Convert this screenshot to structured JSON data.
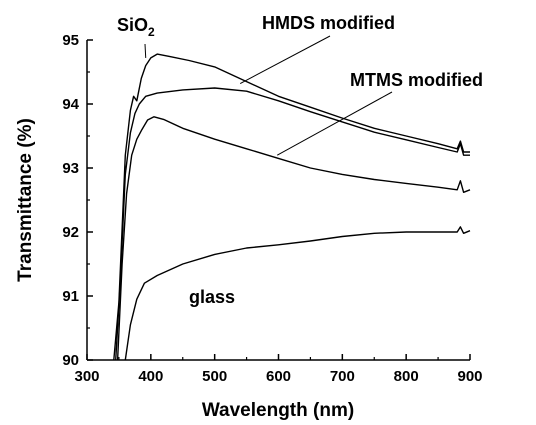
{
  "chart_data": {
    "type": "line",
    "title": "",
    "xlabel": "Wavelength (nm)",
    "ylabel": "Transmittance (%)",
    "xlim": [
      300,
      900
    ],
    "ylim": [
      90,
      95
    ],
    "xticks": [
      "300",
      "400",
      "500",
      "600",
      "700",
      "800",
      "900"
    ],
    "yticks": [
      "90",
      "91",
      "92",
      "93",
      "94",
      "95"
    ],
    "grid": false,
    "legend": "none",
    "line_color": "#000000",
    "series": [
      {
        "label": "SiO2",
        "points": [
          [
            342,
            90
          ],
          [
            350,
            90.9
          ],
          [
            360,
            93.2
          ],
          [
            368,
            93.9
          ],
          [
            373,
            94.12
          ],
          [
            378,
            94.05
          ],
          [
            385,
            94.4
          ],
          [
            392,
            94.6
          ],
          [
            400,
            94.72
          ],
          [
            410,
            94.78
          ],
          [
            430,
            94.74
          ],
          [
            460,
            94.68
          ],
          [
            500,
            94.58
          ],
          [
            550,
            94.35
          ],
          [
            600,
            94.12
          ],
          [
            650,
            93.95
          ],
          [
            700,
            93.78
          ],
          [
            750,
            93.62
          ],
          [
            800,
            93.5
          ],
          [
            850,
            93.38
          ],
          [
            880,
            93.3
          ],
          [
            885,
            93.42
          ],
          [
            890,
            93.25
          ],
          [
            900,
            93.25
          ]
        ]
      },
      {
        "label": "HMDS modified",
        "points": [
          [
            345,
            90
          ],
          [
            352,
            91.2
          ],
          [
            360,
            92.9
          ],
          [
            368,
            93.55
          ],
          [
            375,
            93.85
          ],
          [
            382,
            94.0
          ],
          [
            392,
            94.12
          ],
          [
            410,
            94.17
          ],
          [
            450,
            94.22
          ],
          [
            500,
            94.25
          ],
          [
            550,
            94.2
          ],
          [
            600,
            94.05
          ],
          [
            650,
            93.88
          ],
          [
            700,
            93.72
          ],
          [
            750,
            93.56
          ],
          [
            800,
            93.44
          ],
          [
            850,
            93.32
          ],
          [
            880,
            93.25
          ],
          [
            885,
            93.38
          ],
          [
            890,
            93.2
          ],
          [
            900,
            93.2
          ]
        ]
      },
      {
        "label": "MTMS modified",
        "points": [
          [
            348,
            90
          ],
          [
            355,
            91.5
          ],
          [
            362,
            92.6
          ],
          [
            370,
            93.2
          ],
          [
            378,
            93.45
          ],
          [
            386,
            93.6
          ],
          [
            395,
            93.75
          ],
          [
            405,
            93.8
          ],
          [
            420,
            93.76
          ],
          [
            450,
            93.62
          ],
          [
            500,
            93.45
          ],
          [
            550,
            93.3
          ],
          [
            600,
            93.15
          ],
          [
            650,
            93.0
          ],
          [
            700,
            92.9
          ],
          [
            750,
            92.82
          ],
          [
            800,
            92.76
          ],
          [
            850,
            92.7
          ],
          [
            880,
            92.66
          ],
          [
            885,
            92.8
          ],
          [
            890,
            92.62
          ],
          [
            900,
            92.66
          ]
        ]
      },
      {
        "label": "glass",
        "points": [
          [
            360,
            90
          ],
          [
            368,
            90.55
          ],
          [
            378,
            90.95
          ],
          [
            390,
            91.2
          ],
          [
            410,
            91.32
          ],
          [
            450,
            91.5
          ],
          [
            500,
            91.65
          ],
          [
            550,
            91.75
          ],
          [
            600,
            91.8
          ],
          [
            650,
            91.86
          ],
          [
            700,
            91.93
          ],
          [
            750,
            91.98
          ],
          [
            800,
            92.0
          ],
          [
            850,
            92.0
          ],
          [
            880,
            92.0
          ],
          [
            885,
            92.08
          ],
          [
            890,
            91.98
          ],
          [
            900,
            92.02
          ]
        ]
      }
    ],
    "annotations": [
      {
        "id": "sio2",
        "text": "SiO",
        "subscript": "2",
        "target": [
          392,
          94.72
        ]
      },
      {
        "id": "hmds",
        "text": "HMDS modified",
        "target": [
          540,
          94.32
        ]
      },
      {
        "id": "mtms",
        "text": "MTMS modified",
        "target": [
          598,
          93.2
        ]
      },
      {
        "id": "glass",
        "text": "glass",
        "target": null
      }
    ]
  }
}
